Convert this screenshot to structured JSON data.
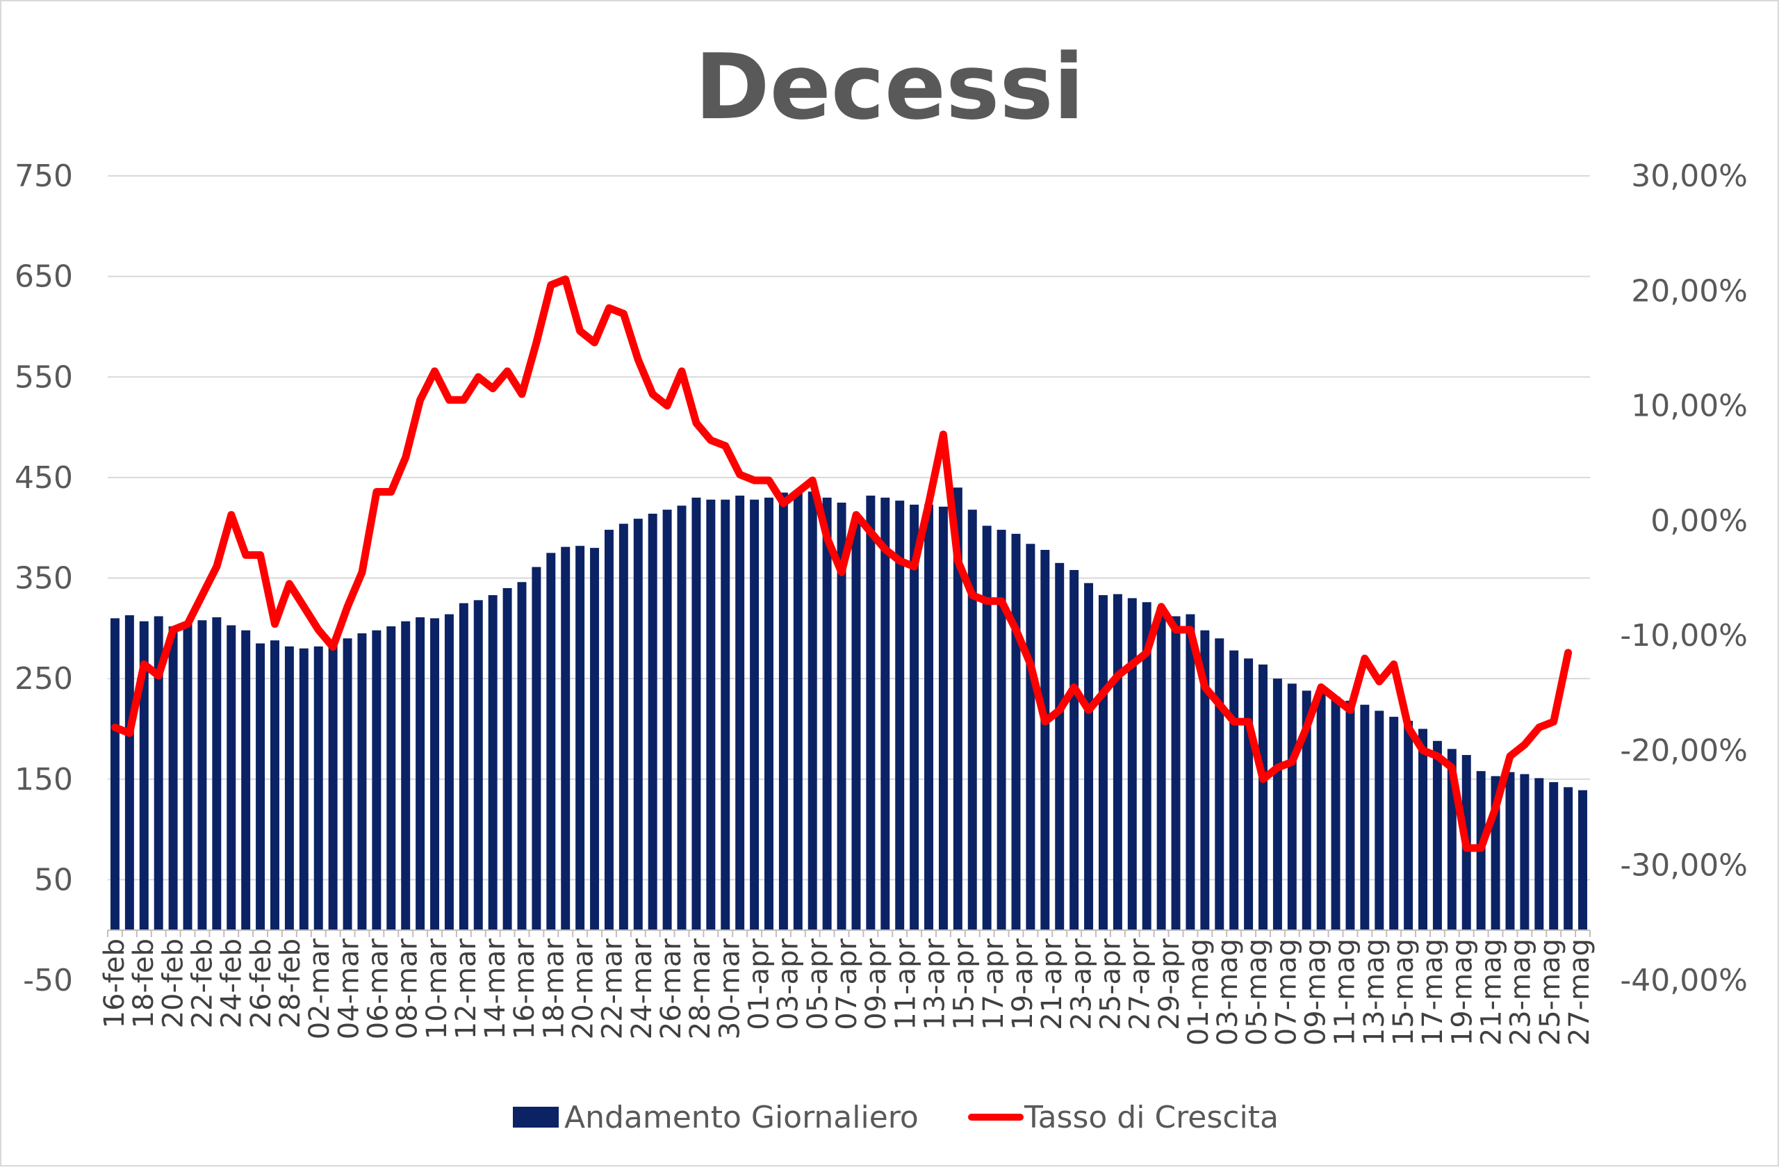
{
  "chart_data": {
    "type": "bar",
    "title": "Decessi",
    "y_left": {
      "ticks": [
        "750",
        "650",
        "550",
        "450",
        "350",
        "250",
        "150",
        "50",
        "-50"
      ],
      "ylim": [
        -50,
        750
      ]
    },
    "y_right": {
      "ticks": [
        "30,00%",
        "20,00%",
        "10,00%",
        "0,00%",
        "-10,00%",
        "-20,00%",
        "-30,00%",
        "-40,00%"
      ],
      "ylim": [
        -40,
        30
      ]
    },
    "x_labels": [
      "16-feb",
      "18-feb",
      "20-feb",
      "22-feb",
      "24-feb",
      "26-feb",
      "28-feb",
      "02-mar",
      "04-mar",
      "06-mar",
      "08-mar",
      "10-mar",
      "12-mar",
      "14-mar",
      "16-mar",
      "18-mar",
      "20-mar",
      "22-mar",
      "24-mar",
      "26-mar",
      "28-mar",
      "30-mar",
      "01-apr",
      "03-apr",
      "05-apr",
      "07-apr",
      "09-apr",
      "11-apr",
      "13-apr",
      "15-apr",
      "17-apr",
      "19-apr",
      "21-apr",
      "23-apr",
      "25-apr",
      "27-apr",
      "29-apr",
      "01-mag",
      "03-mag",
      "05-mag",
      "07-mag",
      "09-mag",
      "11-mag",
      "13-mag",
      "15-mag",
      "17-mag",
      "19-mag",
      "21-mag",
      "23-mag",
      "25-mag",
      "27-mag"
    ],
    "legend_position": "bottom",
    "series": [
      {
        "name": "Andamento Giornaliero",
        "type": "bar",
        "axis": "left",
        "color": "#0b2265",
        "values": [
          310,
          313,
          307,
          312,
          302,
          306,
          308,
          311,
          303,
          298,
          285,
          288,
          282,
          280,
          282,
          286,
          290,
          295,
          298,
          302,
          307,
          311,
          310,
          314,
          325,
          328,
          333,
          340,
          346,
          361,
          375,
          381,
          382,
          380,
          398,
          404,
          409,
          414,
          418,
          422,
          430,
          428,
          428,
          432,
          428,
          430,
          435,
          437,
          436,
          430,
          425,
          408,
          432,
          430,
          427,
          423,
          423,
          421,
          440,
          418,
          402,
          398,
          394,
          384,
          378,
          365,
          358,
          345,
          333,
          334,
          330,
          326,
          321,
          312,
          314,
          298,
          290,
          278,
          270,
          264,
          250,
          245,
          238,
          236,
          232,
          228,
          224,
          218,
          212,
          208,
          200,
          188,
          180,
          174,
          158,
          153,
          157,
          155,
          151,
          147,
          142,
          139
        ]
      },
      {
        "name": "Tasso di Crescita",
        "type": "line",
        "axis": "right",
        "color": "#ff0000",
        "values": [
          -18,
          -18.5,
          -12.5,
          -13.5,
          -9.5,
          -9,
          -6.5,
          -4,
          0.5,
          -3,
          -3,
          -9,
          -5.5,
          -7.5,
          -9.5,
          -11,
          -7.5,
          -4.5,
          2.5,
          2.5,
          5.5,
          10.5,
          13,
          10.5,
          10.5,
          12.5,
          11.5,
          13,
          11,
          15.5,
          20.5,
          21,
          16.5,
          15.5,
          18.5,
          18,
          14,
          11,
          10,
          13,
          8.5,
          7,
          6.5,
          4,
          3.5,
          3.5,
          1.5,
          2.5,
          3.5,
          -1.5,
          -4.5,
          0.5,
          -1,
          -2.5,
          -3.5,
          -4,
          1.5,
          7.5,
          -3.5,
          -6.5,
          -7,
          -7,
          -9.5,
          -12.5,
          -17.5,
          -16.5,
          -14.5,
          -16.5,
          -15,
          -13.5,
          -12.5,
          -11.5,
          -7.5,
          -9.5,
          -9.5,
          -14.5,
          -16,
          -17.5,
          -17.5,
          -22.5,
          -21.5,
          -21,
          -18,
          -14.5,
          -15.5,
          -16.5,
          -12,
          -14,
          -12.5,
          -18,
          -20,
          -20.5,
          -21.5,
          -28.5,
          -28.5,
          -25,
          -20.5,
          -19.5,
          -18,
          -17.5,
          -11.5
        ]
      }
    ]
  }
}
